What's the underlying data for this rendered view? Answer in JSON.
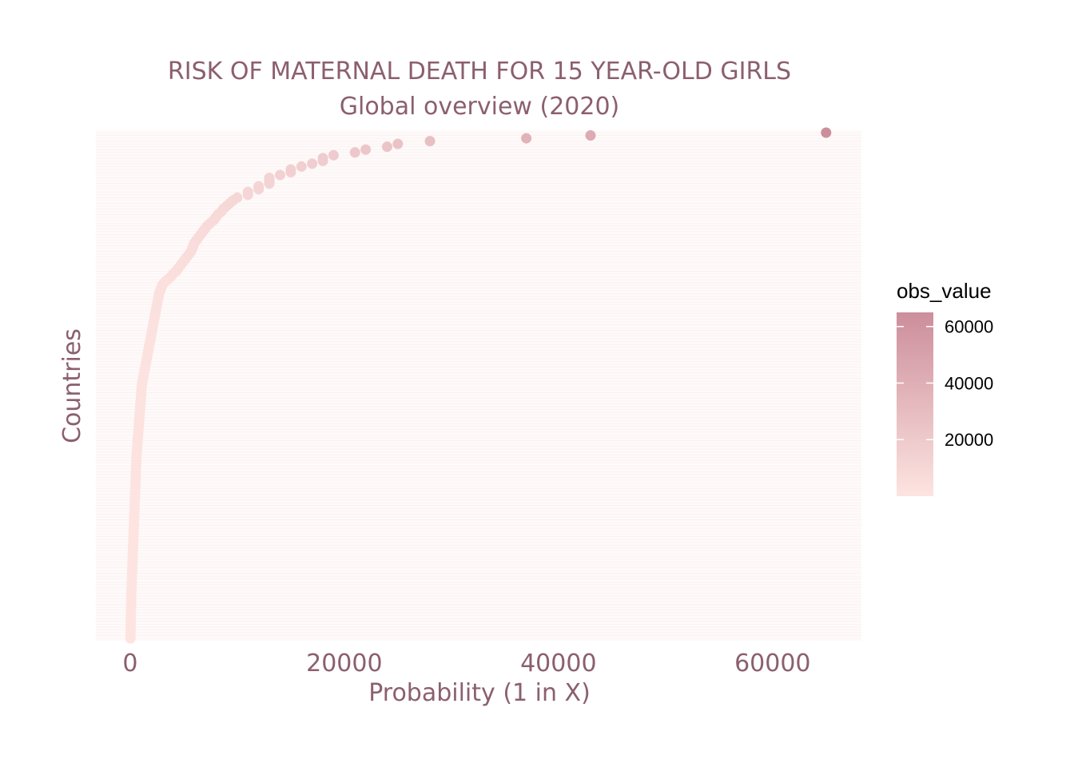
{
  "chart_data": {
    "type": "scatter",
    "title": "RISK OF MATERNAL DEATH FOR 15 YEAR-OLD GIRLS",
    "subtitle": "Global overview (2020)",
    "xlabel": "Probability (1 in X)",
    "ylabel": "Countries",
    "xlim": [
      -3200,
      68300
    ],
    "x_ticks": [
      0,
      20000,
      40000,
      60000
    ],
    "x_tick_labels": [
      "0",
      "20000",
      "40000",
      "60000"
    ],
    "grid": true,
    "legend": {
      "title": "obs_value",
      "position": "right",
      "ticks": [
        20000,
        40000,
        60000
      ],
      "tick_labels": [
        "20000",
        "40000",
        "60000"
      ],
      "range": [
        0,
        65000
      ],
      "color_low": "#fde4e1",
      "color_high": "#cc8e9b"
    },
    "values": [
      65000,
      43000,
      37000,
      28000,
      25000,
      24000,
      22000,
      21000,
      19000,
      18000,
      18000,
      17000,
      16000,
      15000,
      15000,
      14000,
      13000,
      13000,
      13000,
      12000,
      12000,
      11000,
      11000,
      10000,
      9600,
      9300,
      9000,
      8700,
      8500,
      8200,
      8000,
      7800,
      7500,
      7200,
      7000,
      6800,
      6600,
      6400,
      6200,
      6000,
      5900,
      5800,
      5700,
      5500,
      5300,
      5100,
      4900,
      4700,
      4500,
      4300,
      4000,
      3800,
      3500,
      3200,
      3000,
      2900,
      2800,
      2700,
      2650,
      2600,
      2550,
      2500,
      2450,
      2400,
      2350,
      2300,
      2250,
      2200,
      2150,
      2100,
      2050,
      2000,
      1950,
      1900,
      1850,
      1800,
      1750,
      1700,
      1650,
      1600,
      1550,
      1500,
      1450,
      1400,
      1350,
      1300,
      1250,
      1200,
      1150,
      1100,
      1080,
      1060,
      1040,
      1020,
      1000,
      980,
      960,
      940,
      920,
      900,
      880,
      860,
      840,
      820,
      800,
      780,
      760,
      740,
      720,
      700,
      680,
      660,
      640,
      620,
      600,
      590,
      580,
      570,
      560,
      550,
      540,
      530,
      520,
      510,
      500,
      490,
      480,
      470,
      460,
      450,
      440,
      430,
      420,
      410,
      400,
      390,
      380,
      370,
      360,
      350,
      340,
      330,
      320,
      310,
      300,
      290,
      280,
      270,
      260,
      250,
      240,
      230,
      220,
      210,
      200,
      190,
      180,
      170,
      160,
      150,
      140,
      130,
      120,
      110,
      100,
      95,
      90,
      85,
      80,
      75,
      70,
      65,
      60,
      55,
      50,
      45,
      40,
      35,
      30,
      25
    ]
  }
}
